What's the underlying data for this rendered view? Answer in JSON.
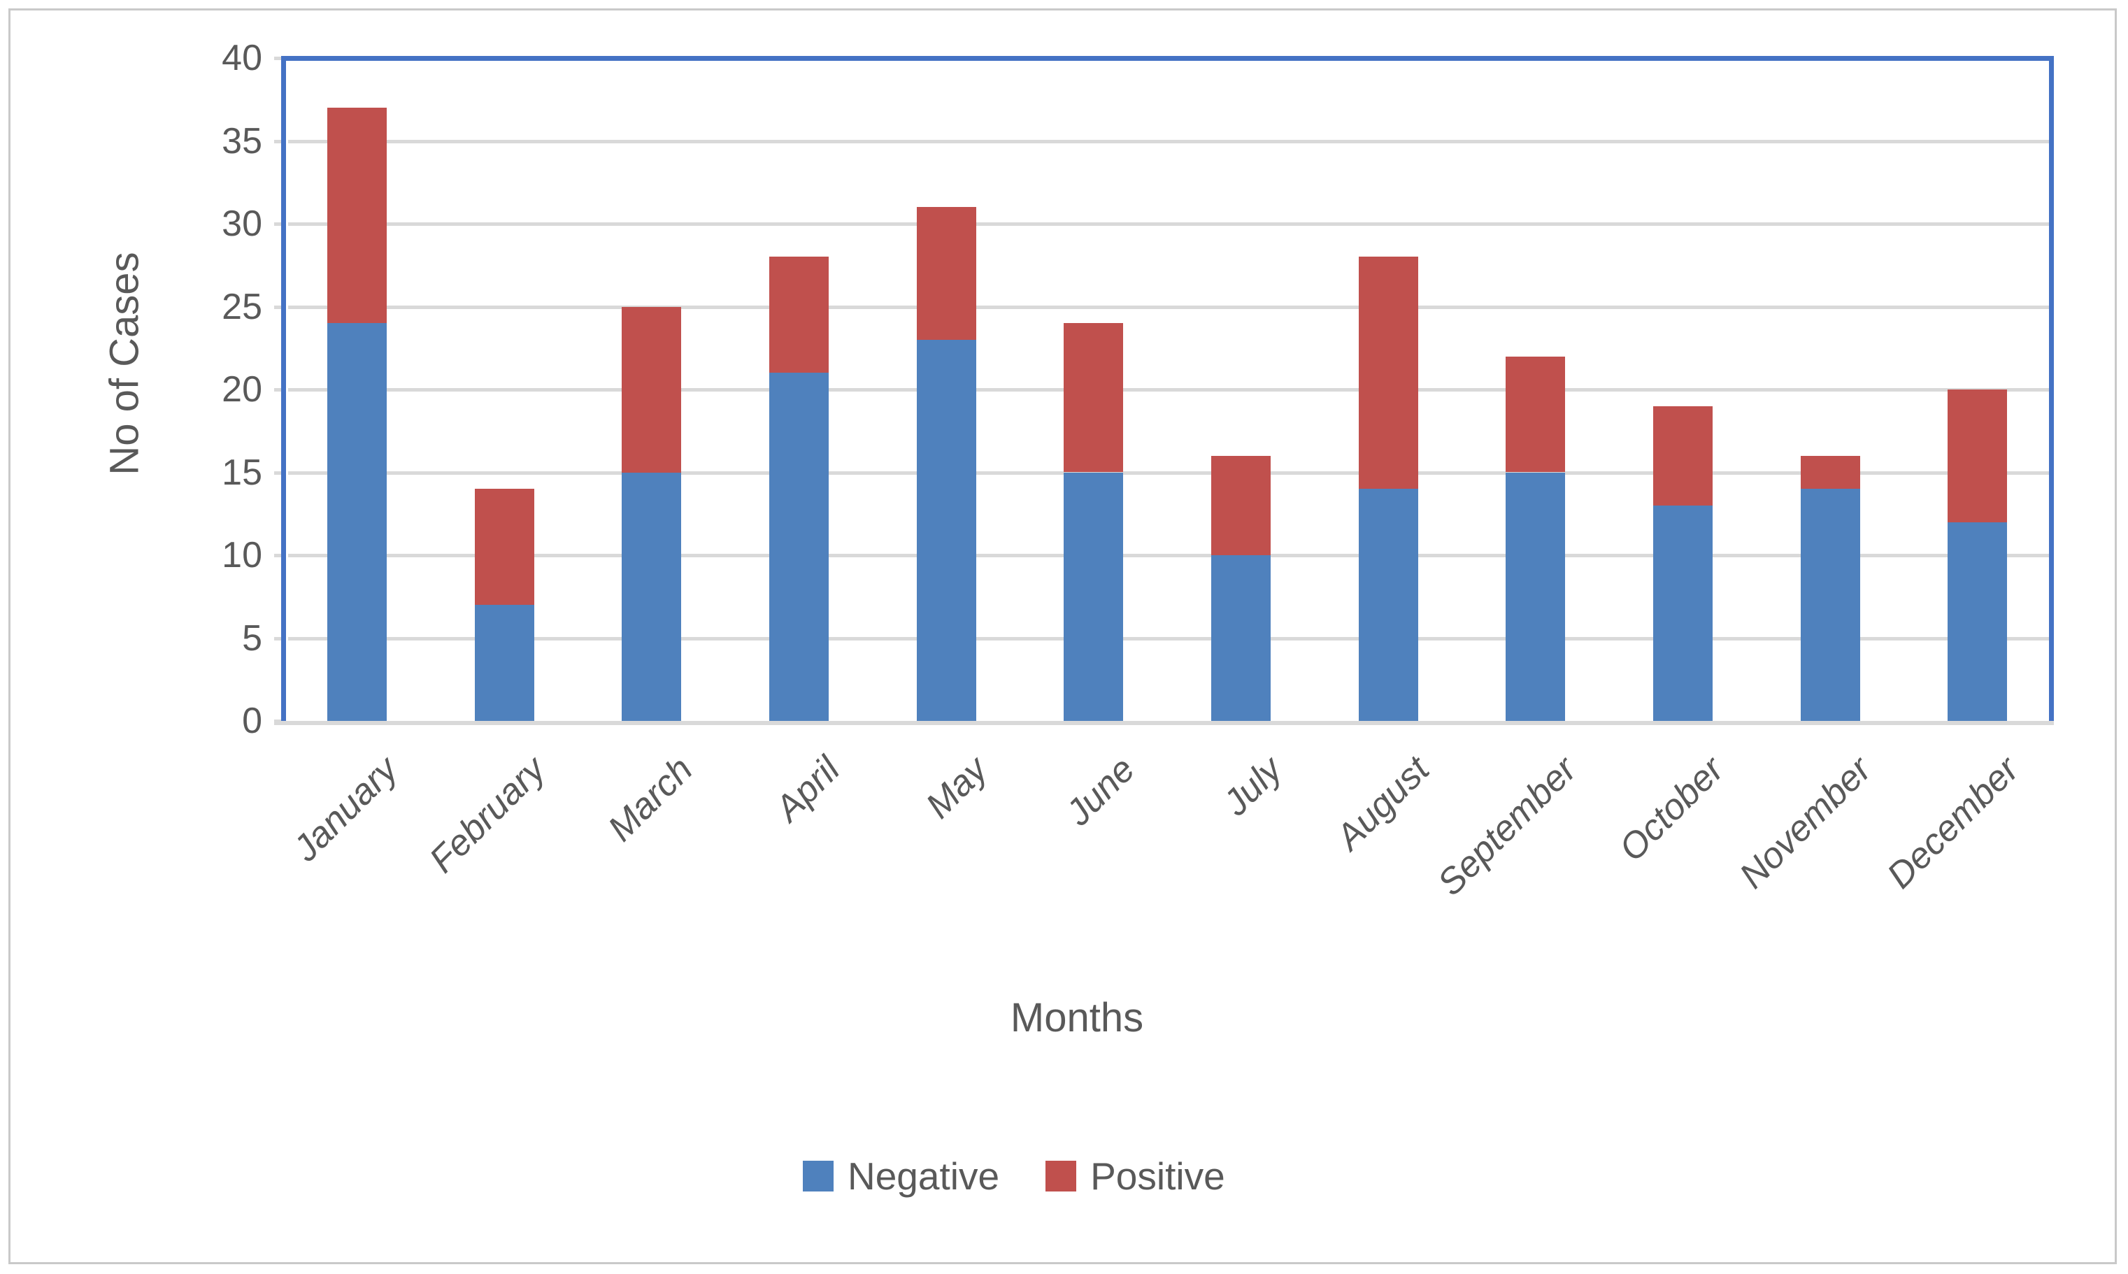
{
  "chart_data": {
    "type": "bar",
    "stacked": true,
    "title": "",
    "xlabel": "Months",
    "ylabel": "No of Cases",
    "categories": [
      "January",
      "February",
      "March",
      "April",
      "May",
      "June",
      "July",
      "August",
      "September",
      "October",
      "November",
      "December"
    ],
    "series": [
      {
        "name": "Negative",
        "color": "#4F81BD",
        "values": [
          24,
          7,
          15,
          21,
          23,
          15,
          10,
          14,
          15,
          13,
          14,
          12
        ]
      },
      {
        "name": "Positive",
        "color": "#C0504D",
        "values": [
          13,
          7,
          10,
          7,
          8,
          9,
          6,
          14,
          7,
          6,
          2,
          8
        ]
      }
    ],
    "totals": [
      37,
      14,
      25,
      28,
      31,
      24,
      16,
      28,
      22,
      19,
      16,
      20
    ],
    "ylim": [
      0,
      40
    ],
    "yticks": [
      0,
      5,
      10,
      15,
      20,
      25,
      30,
      35,
      40
    ],
    "grid": "horizontal",
    "legend_position": "bottom",
    "colors": {
      "plot_border": "#4472C4",
      "gridline": "#d9d9d9",
      "axis_line": "#d9d9d9",
      "text": "#595959",
      "outer_frame": "#c9c9c9"
    }
  }
}
